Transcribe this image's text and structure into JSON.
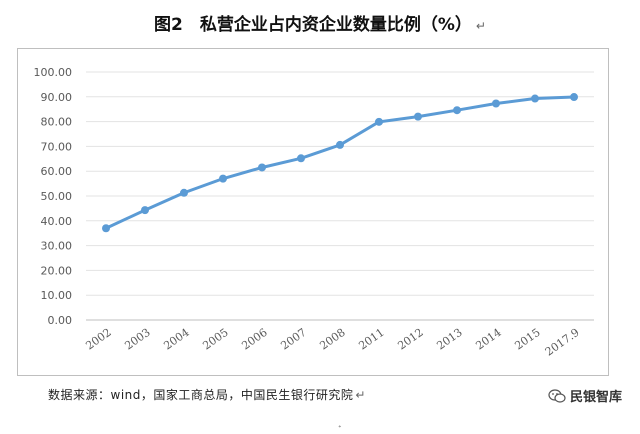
{
  "title": "图2　私营企业占内资企业数量比例（%）",
  "return_mark": "↵",
  "source": "数据来源：wind，国家工商总局，中国民生银行研究院",
  "brand": "民银智库",
  "brand_icon": "wechat-icon",
  "chart_data": {
    "type": "line",
    "title": "",
    "xlabel": "",
    "ylabel": "",
    "categories": [
      "2002",
      "2003",
      "2004",
      "2005",
      "2006",
      "2007",
      "2008",
      "2011",
      "2012",
      "2013",
      "2014",
      "2015",
      "2017.9"
    ],
    "series": [
      {
        "values": [
          37.0,
          44.3,
          51.3,
          57.0,
          61.5,
          65.2,
          70.6,
          79.9,
          82.0,
          84.6,
          87.3,
          89.3,
          89.9
        ]
      }
    ],
    "ylim": [
      0,
      100
    ],
    "yticks": [
      "0.00",
      "10.00",
      "20.00",
      "30.00",
      "40.00",
      "50.00",
      "60.00",
      "70.00",
      "80.00",
      "90.00",
      "100.00"
    ],
    "grid": true,
    "legend": "none",
    "color": "#5b9bd5"
  }
}
